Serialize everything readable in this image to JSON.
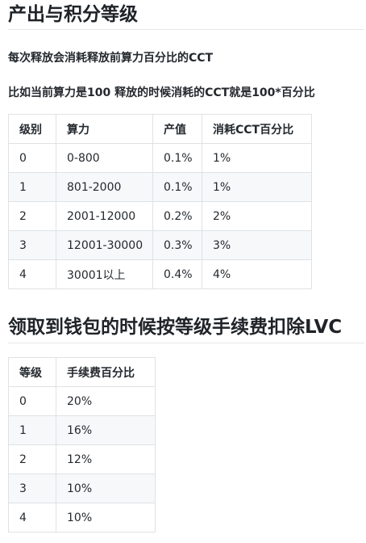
{
  "section1": {
    "title": "产出与积分等级",
    "para1": "每次释放会消耗释放前算力百分比的CCT",
    "para2": "比如当前算力是100 释放的时候消耗的CCT就是100*百分比",
    "headers": [
      "级别",
      "算力",
      "产值",
      "消耗CCT百分比"
    ],
    "rows": [
      [
        "0",
        "0-800",
        "0.1%",
        "1%"
      ],
      [
        "1",
        "801-2000",
        "0.1%",
        "1%"
      ],
      [
        "2",
        "2001-12000",
        "0.2%",
        "2%"
      ],
      [
        "3",
        "12001-30000",
        "0.3%",
        "3%"
      ],
      [
        "4",
        "30001以上",
        "0.4%",
        "4%"
      ]
    ]
  },
  "section2": {
    "title": "领取到钱包的时候按等级手续费扣除LVC",
    "headers": [
      "等级",
      "手续费百分比"
    ],
    "rows": [
      [
        "0",
        "20%"
      ],
      [
        "1",
        "16%"
      ],
      [
        "2",
        "12%"
      ],
      [
        "3",
        "10%"
      ],
      [
        "4",
        "10%"
      ]
    ]
  }
}
